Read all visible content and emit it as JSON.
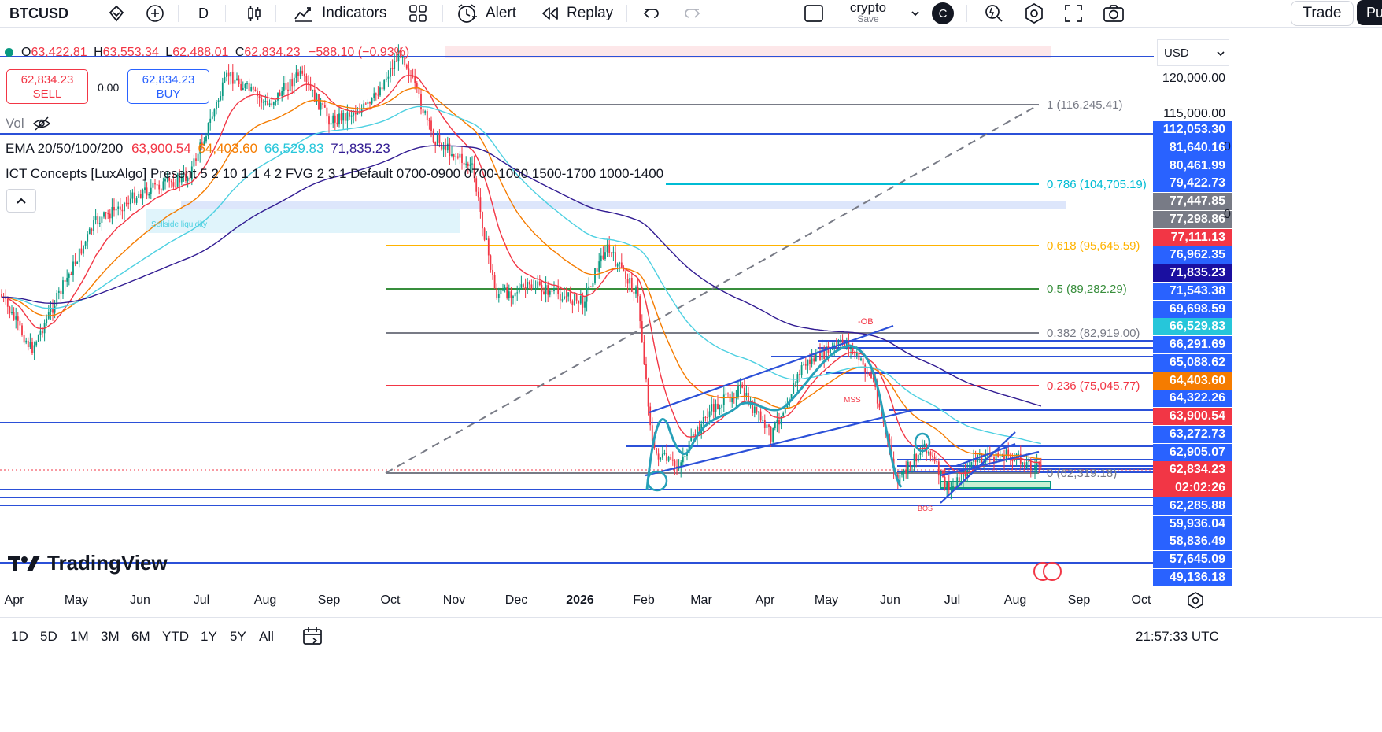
{
  "toolbar": {
    "symbol": "BTCUSD",
    "interval": "D",
    "indicators_label": "Indicators",
    "alert_label": "Alert",
    "replay_label": "Replay",
    "layout_name": "crypto",
    "layout_save": "Save",
    "avatar_letter": "C",
    "trade_label": "Trade",
    "publish_label": "Pu"
  },
  "legend": {
    "open_key": "O",
    "open": "63,422.81",
    "high_key": "H",
    "high": "63,553.34",
    "low_key": "L",
    "low": "62,488.01",
    "close_key": "C",
    "close": "62,834.23",
    "change": "−588.10 (−0.93%)",
    "sell_price": "62,834.23",
    "sell_label": "SELL",
    "spread": "0.00",
    "buy_price": "62,834.23",
    "buy_label": "BUY",
    "vol_label": "Vol",
    "ema_name": "EMA 20/50/100/200",
    "ema_20": "63,900.54",
    "ema_50": "64,403.60",
    "ema_100": "66,529.83",
    "ema_200": "71,835.23",
    "ict_label": "ICT Concepts [LuxAlgo] Present 5 2 10 1 1 4 2 FVG 2 3 1 Default 0700-0900 0700-1000 1500-1700 1000-1400"
  },
  "colors": {
    "up": "#089981",
    "down": "#f23645",
    "accent": "#2962ff",
    "ema20": "#f23645",
    "ema50": "#f57c00",
    "ema100": "#4dd0e1",
    "ema200": "#311b92"
  },
  "fib": [
    {
      "label": "1 (116,245.41)",
      "color": "#787b86"
    },
    {
      "label": "0.786 (104,705.19)",
      "color": "#00bcd4"
    },
    {
      "label": "0.618 (95,645.59)",
      "color": "#ffb300"
    },
    {
      "label": "0.5 (89,282.29)",
      "color": "#388e3c"
    },
    {
      "label": "0.382 (82,919.00)",
      "color": "#787b86"
    },
    {
      "label": "0.236 (75,045.77)",
      "color": "#f23645"
    },
    {
      "label": "0 (62,319.18)",
      "color": "#787b86"
    }
  ],
  "annotations": {
    "ob": "-OB",
    "mss": "MSS",
    "bos": "BOS",
    "liquidity": "Sellside liquidity"
  },
  "price_scale": {
    "currency": "USD",
    "ticks": [
      "120,000.00",
      "115,000.00"
    ],
    "labels": [
      {
        "text": "112,053.30",
        "bg": "#2962ff"
      },
      {
        "text": "81,640.16",
        "bg": "#2962ff"
      },
      {
        "text": "80,461.99",
        "bg": "#2962ff"
      },
      {
        "text": "79,422.73",
        "bg": "#2962ff"
      },
      {
        "text": "77,447.85",
        "bg": "#787b86"
      },
      {
        "text": "77,298.86",
        "bg": "#787b86"
      },
      {
        "text": "77,111.13",
        "bg": "#f23645"
      },
      {
        "text": "76,962.35",
        "bg": "#2962ff"
      },
      {
        "text": "71,835.23",
        "bg": "#1a0fa0"
      },
      {
        "text": "71,543.38",
        "bg": "#2962ff"
      },
      {
        "text": "69,698.59",
        "bg": "#2962ff"
      },
      {
        "text": "66,529.83",
        "bg": "#26c6da"
      },
      {
        "text": "66,291.69",
        "bg": "#2962ff"
      },
      {
        "text": "65,088.62",
        "bg": "#2962ff"
      },
      {
        "text": "64,403.60",
        "bg": "#f57c00"
      },
      {
        "text": "64,322.26",
        "bg": "#2962ff"
      },
      {
        "text": "63,900.54",
        "bg": "#f23645"
      },
      {
        "text": "63,272.73",
        "bg": "#2962ff"
      },
      {
        "text": "62,905.07",
        "bg": "#2962ff"
      },
      {
        "text": "62,834.23",
        "bg": "#f23645"
      },
      {
        "text": "02:02:26",
        "bg": "#f23645"
      },
      {
        "text": "62,285.88",
        "bg": "#2962ff"
      },
      {
        "text": "59,936.04",
        "bg": "#2962ff"
      },
      {
        "text": "58,836.49",
        "bg": "#2962ff"
      },
      {
        "text": "57,645.09",
        "bg": "#2962ff"
      },
      {
        "text": "49,136.18",
        "bg": "#2962ff"
      }
    ],
    "edge_marks": [
      "0",
      "0"
    ]
  },
  "time_axis": [
    "Apr",
    "May",
    "Jun",
    "Jul",
    "Aug",
    "Sep",
    "Oct",
    "Nov",
    "Dec",
    "2026",
    "Feb",
    "Mar",
    "Apr",
    "May",
    "Jun",
    "Jul",
    "Aug",
    "Sep",
    "Oct"
  ],
  "ranges": [
    "1D",
    "5D",
    "1M",
    "3M",
    "6M",
    "YTD",
    "1Y",
    "5Y",
    "All"
  ],
  "clock": "21:57:33 UTC",
  "brand": "TradingView"
}
